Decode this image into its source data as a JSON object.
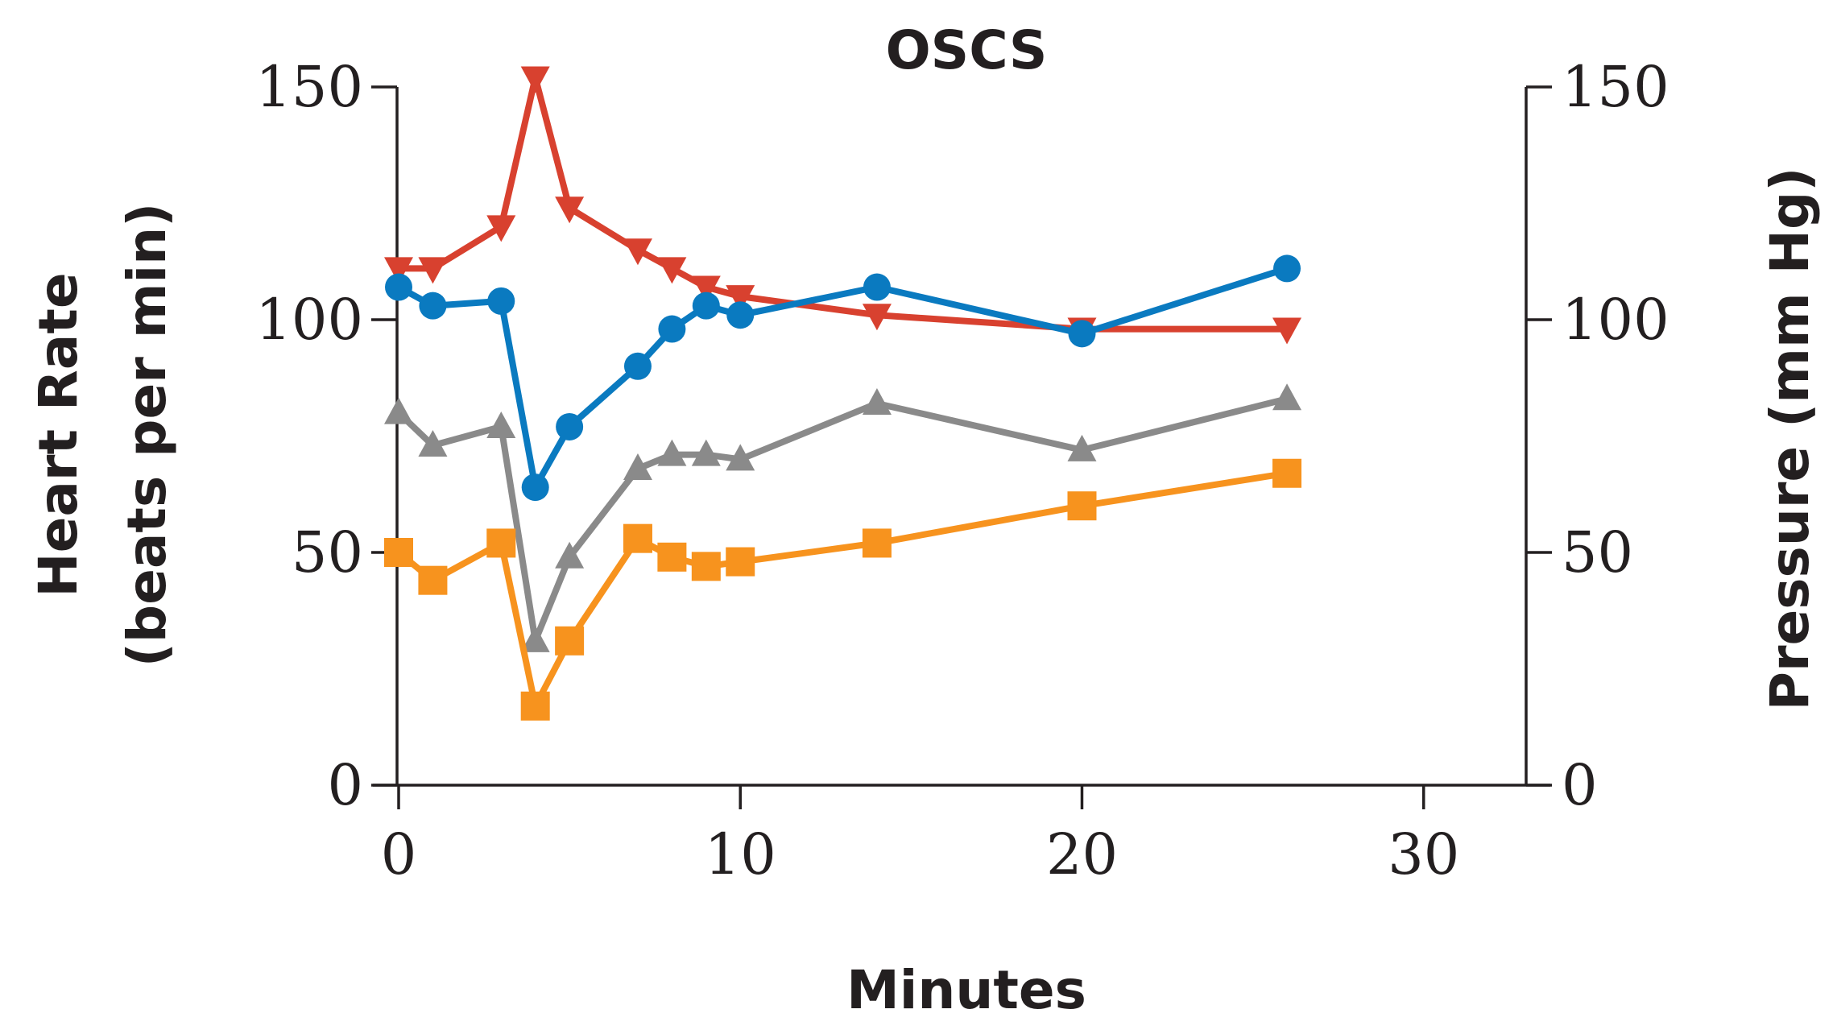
{
  "chart_data": {
    "type": "line",
    "title": "OSCS",
    "xlabel": "Minutes",
    "ylabel_left": [
      "Heart Rate",
      "(beats per min)"
    ],
    "ylabel_right": "Pressure (mm Hg)",
    "xlim": [
      0,
      33
    ],
    "ylim_left": [
      0,
      150
    ],
    "ylim_right": [
      0,
      150
    ],
    "x_ticks": [
      0,
      10,
      20,
      30
    ],
    "x_tick_labels": [
      "0",
      "10",
      "20",
      "30"
    ],
    "y_ticks": [
      0,
      50,
      100,
      150
    ],
    "y_tick_labels_left": [
      "0",
      "50",
      "100",
      "150"
    ],
    "y_tick_labels_right": [
      "0",
      "50",
      "100",
      "150"
    ],
    "grid": false,
    "series": [
      {
        "name": "red",
        "marker": "triangle-down",
        "color": "#d8412f",
        "x": [
          0,
          1,
          3,
          4,
          5,
          7,
          8,
          9,
          10,
          14,
          20,
          26
        ],
        "y": [
          111,
          111,
          120,
          152,
          124,
          115,
          111,
          107,
          105,
          101,
          98,
          98
        ]
      },
      {
        "name": "blue",
        "marker": "circle",
        "color": "#0a7ac0",
        "x": [
          0,
          1,
          3,
          4,
          5,
          7,
          8,
          9,
          10,
          14,
          20,
          26
        ],
        "y": [
          107,
          103,
          104,
          64,
          77,
          90,
          98,
          103,
          101,
          107,
          97,
          111
        ]
      },
      {
        "name": "gray",
        "marker": "triangle-up",
        "color": "#8a8a8a",
        "x": [
          0,
          1,
          3,
          4,
          5,
          7,
          8,
          9,
          10,
          14,
          20,
          26
        ],
        "y": [
          80,
          73,
          77,
          31,
          49,
          68,
          71,
          71,
          70,
          82,
          72,
          83
        ]
      },
      {
        "name": "orange",
        "marker": "square",
        "color": "#f7931e",
        "x": [
          0,
          1,
          3,
          4,
          5,
          7,
          8,
          9,
          10,
          14,
          20,
          26
        ],
        "y": [
          50,
          44,
          52,
          17,
          31,
          53,
          49,
          47,
          48,
          52,
          60,
          67
        ]
      }
    ]
  }
}
